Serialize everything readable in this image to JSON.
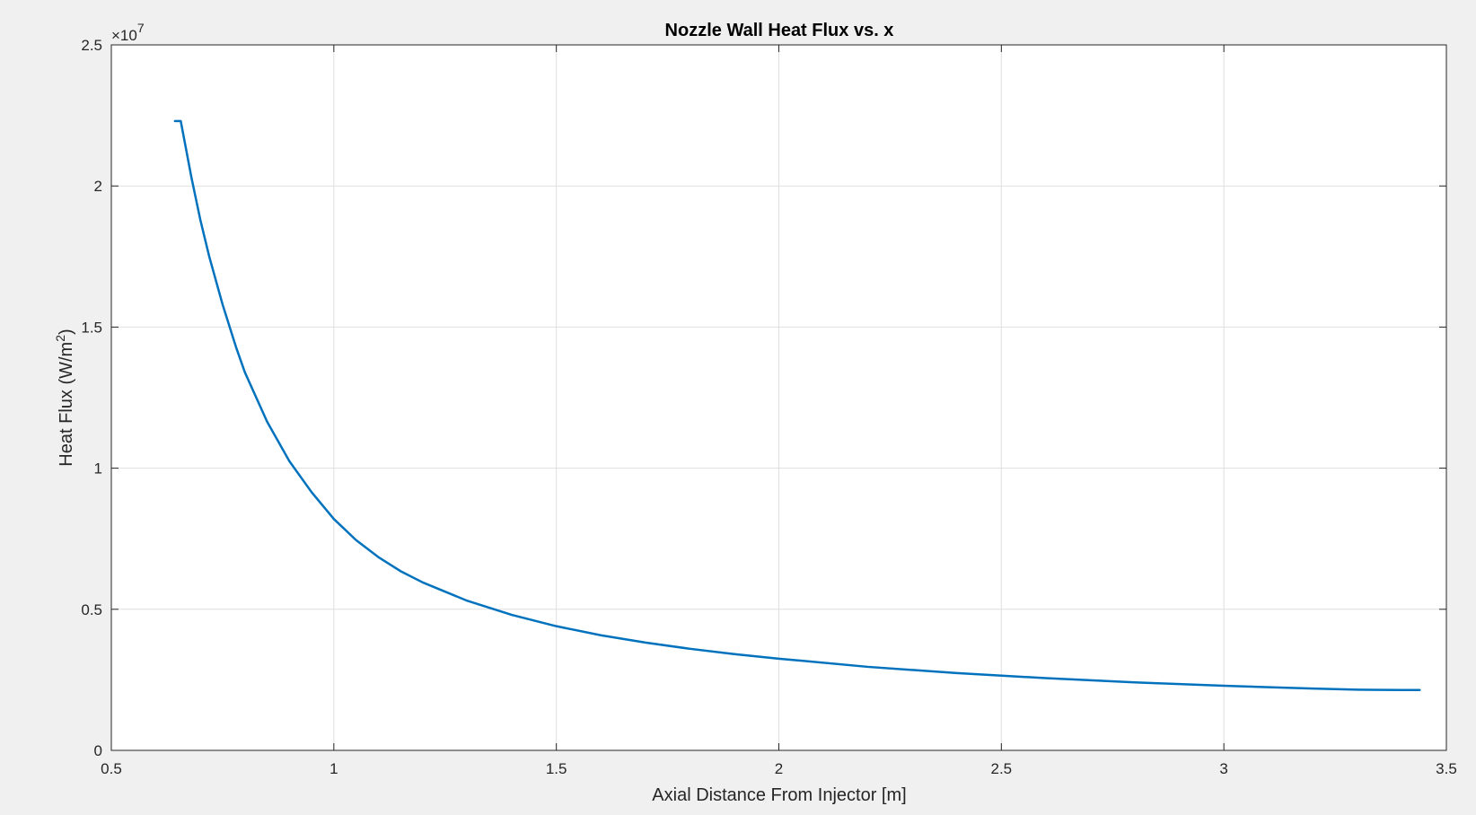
{
  "chart_data": {
    "type": "line",
    "title": "Nozzle Wall Heat Flux vs. x",
    "xlabel": "Axial Distance From Injector [m]",
    "ylabel_main": "Heat Flux (W/m",
    "ylabel_sup": "2",
    "ylabel_close": ")",
    "y_exponent_base": "×10",
    "y_exponent_power": "7",
    "xlim": [
      0.5,
      3.5
    ],
    "ylim": [
      0,
      25000000
    ],
    "xticks": [
      0.5,
      1,
      1.5,
      2,
      2.5,
      3,
      3.5
    ],
    "xtick_labels": [
      "0.5",
      "1",
      "1.5",
      "2",
      "2.5",
      "3",
      "3.5"
    ],
    "yticks": [
      0,
      5000000,
      10000000,
      15000000,
      20000000,
      25000000
    ],
    "ytick_labels": [
      "0",
      "0.5",
      "1",
      "1.5",
      "2",
      "2.5"
    ],
    "grid": true,
    "series": [
      {
        "color": "#0072bd",
        "x": [
          0.643,
          0.656,
          0.68,
          0.7,
          0.72,
          0.75,
          0.78,
          0.8,
          0.85,
          0.9,
          0.95,
          1.0,
          1.05,
          1.1,
          1.15,
          1.2,
          1.3,
          1.4,
          1.5,
          1.6,
          1.7,
          1.8,
          1.9,
          2.0,
          2.2,
          2.4,
          2.6,
          2.8,
          3.0,
          3.2,
          3.3,
          3.4,
          3.44
        ],
        "y": [
          22300000,
          22300000,
          20300000,
          18800000,
          17500000,
          15800000,
          14300000,
          13400000,
          11650000,
          10250000,
          9150000,
          8200000,
          7450000,
          6850000,
          6350000,
          5950000,
          5300000,
          4800000,
          4400000,
          4080000,
          3820000,
          3600000,
          3410000,
          3250000,
          2960000,
          2740000,
          2560000,
          2410000,
          2290000,
          2190000,
          2150000,
          2140000,
          2140000
        ]
      }
    ]
  }
}
